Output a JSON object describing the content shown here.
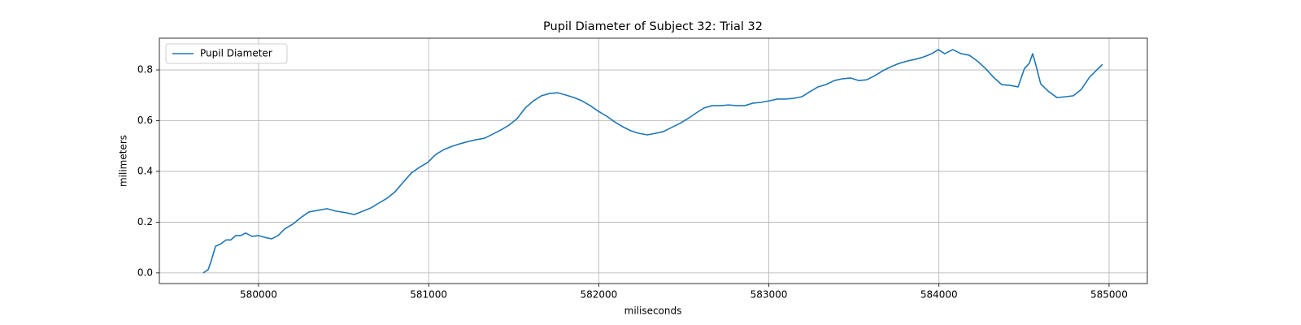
{
  "chart_data": {
    "type": "line",
    "title": "Pupil Diameter of Subject 32: Trial 32",
    "x_label": "miliseconds",
    "y_label": "milimeters",
    "legend": "upper left",
    "grid": true,
    "xlim": [
      579417,
      585225
    ],
    "ylim": [
      -0.042,
      0.925
    ],
    "xticks": [
      580000,
      581000,
      582000,
      583000,
      584000,
      585000
    ],
    "yticks": [
      {
        "value": 0,
        "label": "0.0"
      },
      0.2,
      0.4,
      0.6,
      0.8
    ],
    "x": [
      579675,
      579704,
      579723,
      579747,
      579780,
      579809,
      579837,
      579866,
      579895,
      579924,
      579962,
      580000,
      580038,
      580076,
      580115,
      580153,
      580201,
      580249,
      580296,
      580344,
      580402,
      580459,
      580516,
      580564,
      580612,
      580660,
      580707,
      580755,
      580803,
      580851,
      580899,
      580946,
      580994,
      581042,
      581090,
      581138,
      581185,
      581233,
      581281,
      581329,
      581377,
      581424,
      581472,
      581520,
      581568,
      581616,
      581663,
      581711,
      581759,
      581807,
      581855,
      581902,
      581950,
      581998,
      582046,
      582094,
      582141,
      582189,
      582237,
      582285,
      582333,
      582380,
      582428,
      582476,
      582524,
      582572,
      582619,
      582667,
      582715,
      582763,
      582811,
      582858,
      582906,
      582954,
      583002,
      583050,
      583097,
      583145,
      583193,
      583241,
      583289,
      583336,
      583384,
      583432,
      583480,
      583528,
      583575,
      583623,
      583671,
      583719,
      583767,
      583814,
      583862,
      583910,
      583958,
      583996,
      584034,
      584082,
      584130,
      584178,
      584226,
      584273,
      584321,
      584369,
      584417,
      584465,
      584503,
      584531,
      584551,
      584570,
      584598,
      584646,
      584694,
      584742,
      584790,
      584837,
      584885,
      584933,
      584962
    ],
    "series": [
      {
        "name": "Pupil Diameter",
        "color": "#1f77b4",
        "values": [
          0.0,
          0.013,
          0.05,
          0.105,
          0.115,
          0.13,
          0.13,
          0.147,
          0.147,
          0.157,
          0.144,
          0.147,
          0.14,
          0.134,
          0.147,
          0.173,
          0.192,
          0.218,
          0.24,
          0.246,
          0.253,
          0.243,
          0.237,
          0.23,
          0.243,
          0.256,
          0.275,
          0.294,
          0.32,
          0.358,
          0.394,
          0.416,
          0.435,
          0.467,
          0.486,
          0.499,
          0.509,
          0.518,
          0.525,
          0.531,
          0.547,
          0.563,
          0.582,
          0.608,
          0.65,
          0.678,
          0.698,
          0.707,
          0.71,
          0.701,
          0.691,
          0.678,
          0.659,
          0.637,
          0.618,
          0.595,
          0.576,
          0.56,
          0.55,
          0.544,
          0.55,
          0.557,
          0.573,
          0.589,
          0.608,
          0.63,
          0.65,
          0.659,
          0.659,
          0.662,
          0.659,
          0.659,
          0.669,
          0.672,
          0.678,
          0.685,
          0.685,
          0.688,
          0.694,
          0.714,
          0.733,
          0.742,
          0.758,
          0.765,
          0.768,
          0.758,
          0.761,
          0.777,
          0.797,
          0.813,
          0.826,
          0.835,
          0.842,
          0.851,
          0.864,
          0.88,
          0.864,
          0.88,
          0.864,
          0.858,
          0.835,
          0.806,
          0.771,
          0.742,
          0.739,
          0.733,
          0.806,
          0.826,
          0.864,
          0.819,
          0.745,
          0.714,
          0.691,
          0.694,
          0.698,
          0.723,
          0.771,
          0.803,
          0.822
        ]
      }
    ]
  }
}
